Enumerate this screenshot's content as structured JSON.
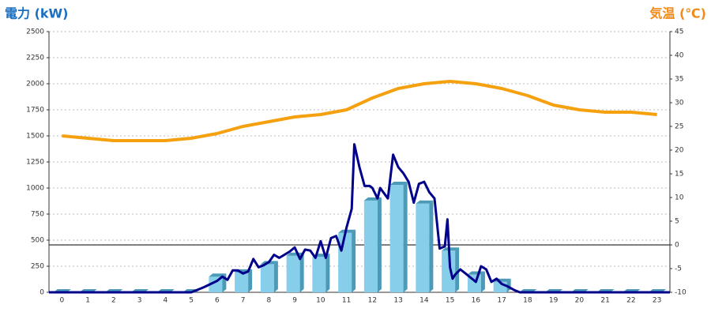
{
  "chart_data": {
    "type": "bar",
    "y_label": "電力 (kW)",
    "y2_label": "気温 (℃)",
    "categories": [
      "0",
      "1",
      "2",
      "3",
      "4",
      "5",
      "6",
      "7",
      "8",
      "9",
      "10",
      "11",
      "12",
      "13",
      "14",
      "15",
      "16",
      "17",
      "18",
      "19",
      "20",
      "21",
      "22",
      "23"
    ],
    "xlim": [
      -0.5,
      23.5
    ],
    "ylim": [
      0,
      2500
    ],
    "yticks": [
      0,
      250,
      500,
      750,
      1000,
      1250,
      1500,
      1750,
      2000,
      2250,
      2500
    ],
    "y2lim": [
      -10,
      45
    ],
    "y2ticks": [
      -10,
      -5,
      0,
      5,
      10,
      15,
      20,
      25,
      30,
      35,
      40,
      45
    ],
    "grid": true,
    "series": [
      {
        "type": "bar",
        "color": "#87ceeb",
        "side_color": "#4a9ab8",
        "values": [
          0,
          0,
          0,
          0,
          0,
          0,
          150,
          190,
          270,
          350,
          340,
          570,
          880,
          1030,
          850,
          400,
          170,
          100,
          0,
          0,
          0,
          0,
          0,
          0
        ]
      },
      {
        "type": "line",
        "color": "#00008b",
        "x": [
          -0.5,
          5,
          5.5,
          6,
          6.2,
          6.4,
          6.6,
          6.8,
          7,
          7.2,
          7.4,
          7.6,
          7.8,
          8,
          8.2,
          8.4,
          8.6,
          8.8,
          9,
          9.2,
          9.4,
          9.6,
          9.8,
          10,
          10.2,
          10.4,
          10.6,
          10.8,
          11,
          11.2,
          11.3,
          11.5,
          11.7,
          11.9,
          12,
          12.2,
          12.3,
          12.6,
          12.8,
          13,
          13.2,
          13.4,
          13.6,
          13.8,
          14,
          14.2,
          14.4,
          14.6,
          14.8,
          14.9,
          15,
          15.1,
          15.2,
          15.4,
          15.6,
          15.8,
          16,
          16.2,
          16.4,
          16.6,
          16.8,
          17,
          17.2,
          17.5,
          17.7,
          23.5
        ],
        "values": [
          0,
          0,
          50,
          110,
          150,
          120,
          210,
          210,
          180,
          200,
          320,
          240,
          260,
          290,
          360,
          330,
          360,
          390,
          430,
          320,
          410,
          400,
          330,
          490,
          330,
          520,
          540,
          400,
          620,
          800,
          1420,
          1200,
          1020,
          1020,
          1000,
          900,
          1000,
          900,
          1320,
          1200,
          1140,
          1060,
          860,
          1040,
          1060,
          960,
          900,
          420,
          440,
          700,
          240,
          130,
          170,
          220,
          180,
          140,
          100,
          250,
          220,
          100,
          130,
          80,
          60,
          20,
          0,
          0
        ]
      },
      {
        "type": "line",
        "axis": "y2",
        "color": "#f5a00f",
        "values": [
          23,
          22.5,
          22,
          22,
          22,
          22.5,
          23.5,
          25,
          26,
          27,
          27.5,
          28.5,
          31,
          33,
          34,
          34.5,
          34,
          33,
          31.5,
          29.5,
          28.5,
          28,
          28,
          27.5
        ]
      }
    ]
  }
}
